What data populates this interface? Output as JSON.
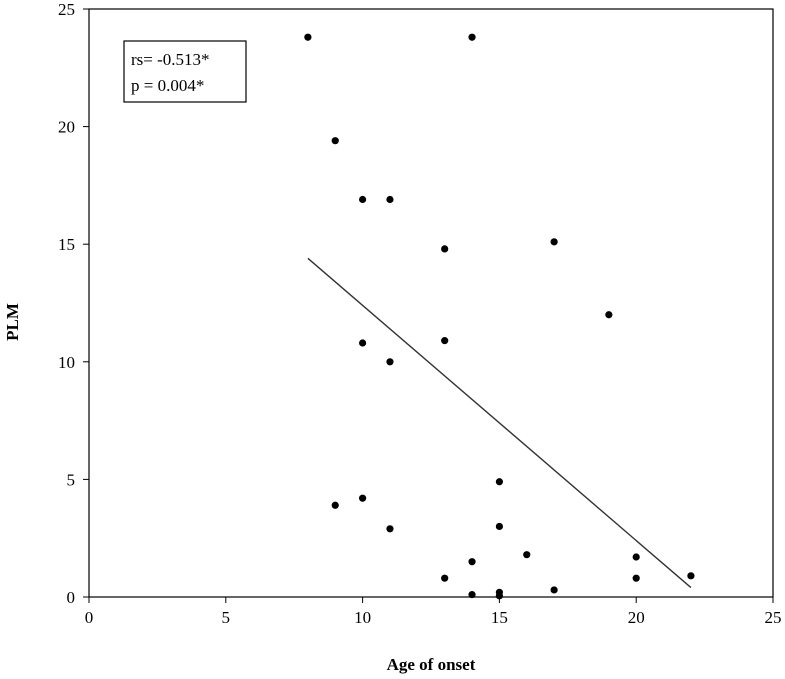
{
  "chart_data": {
    "type": "scatter",
    "xlabel": "Age of onset",
    "ylabel": "PLM",
    "xlim": [
      0,
      25
    ],
    "ylim": [
      0,
      25
    ],
    "x_ticks": [
      0,
      5,
      10,
      15,
      20,
      25
    ],
    "y_ticks": [
      0,
      5,
      10,
      15,
      20,
      25
    ],
    "grid": false,
    "legend": "none",
    "points": [
      {
        "x": 8,
        "y": 23.8
      },
      {
        "x": 14,
        "y": 23.8
      },
      {
        "x": 9,
        "y": 19.4
      },
      {
        "x": 10,
        "y": 16.9
      },
      {
        "x": 11,
        "y": 16.9
      },
      {
        "x": 13,
        "y": 14.8
      },
      {
        "x": 17,
        "y": 15.1
      },
      {
        "x": 19,
        "y": 12.0
      },
      {
        "x": 10,
        "y": 10.8
      },
      {
        "x": 13,
        "y": 10.9
      },
      {
        "x": 11,
        "y": 10.0
      },
      {
        "x": 9,
        "y": 3.9
      },
      {
        "x": 10,
        "y": 4.2
      },
      {
        "x": 11,
        "y": 2.9
      },
      {
        "x": 15,
        "y": 4.9
      },
      {
        "x": 15,
        "y": 3.0
      },
      {
        "x": 16,
        "y": 1.8
      },
      {
        "x": 20,
        "y": 1.7
      },
      {
        "x": 14,
        "y": 1.5
      },
      {
        "x": 13,
        "y": 0.8
      },
      {
        "x": 20,
        "y": 0.8
      },
      {
        "x": 22,
        "y": 0.9
      },
      {
        "x": 17,
        "y": 0.3
      },
      {
        "x": 14,
        "y": 0.1
      },
      {
        "x": 15,
        "y": 0.2
      },
      {
        "x": 15,
        "y": 0.05
      }
    ],
    "trendline": {
      "x1": 8,
      "y1": 14.4,
      "x2": 22,
      "y2": 0.4
    },
    "annotation": {
      "line1": "rs= -0.513*",
      "line2": "p = 0.004*",
      "placement": "top-left"
    },
    "colors": {
      "points": "#000000",
      "trendline": "#333333",
      "axis": "#000000"
    }
  }
}
